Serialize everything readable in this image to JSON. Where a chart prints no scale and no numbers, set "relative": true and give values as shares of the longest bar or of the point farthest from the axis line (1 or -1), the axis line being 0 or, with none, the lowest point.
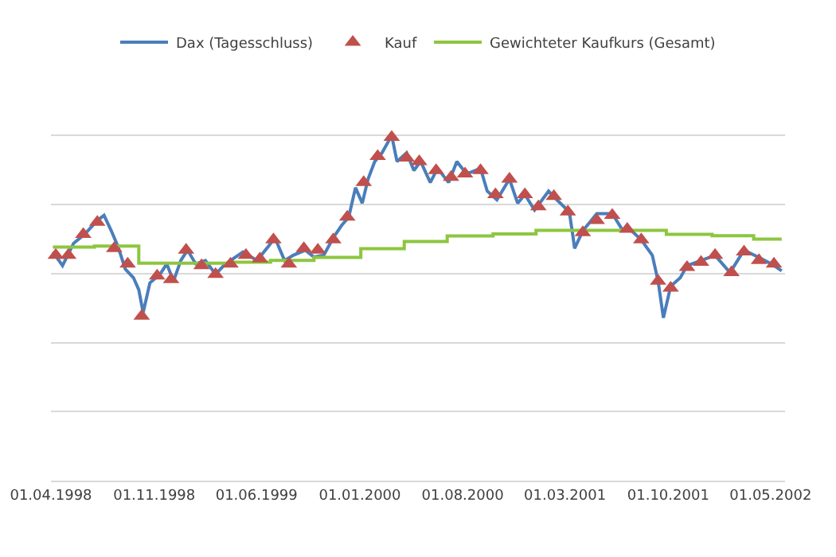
{
  "chart_data": {
    "type": "line",
    "relative": true,
    "grid": "y",
    "legend": "top",
    "xlim": [
      "1998-04-01",
      "2002-05-31"
    ],
    "xticks": [
      {
        "value": "1998-04-01",
        "label": "01.04.1998"
      },
      {
        "value": "1998-11-01",
        "label": "01.11.1998"
      },
      {
        "value": "1999-06-01",
        "label": "01.06.1999"
      },
      {
        "value": "2000-01-01",
        "label": "01.01.2000"
      },
      {
        "value": "2000-08-01",
        "label": "01.08.2000"
      },
      {
        "value": "2001-03-01",
        "label": "01.03.2001"
      },
      {
        "value": "2001-10-01",
        "label": "01.10.2001"
      },
      {
        "value": "2002-05-01",
        "label": "01.05.2002"
      }
    ],
    "series": [
      {
        "name": "Dax (Tagesschluss)",
        "color": "#4a7ebb",
        "x": [
          "1998-04-05",
          "1998-04-25",
          "1998-05-18",
          "1998-06-10",
          "1998-07-06",
          "1998-07-20",
          "1998-08-04",
          "1998-08-18",
          "1998-09-02",
          "1998-09-19",
          "1998-09-30",
          "1998-10-09",
          "1998-10-23",
          "1998-11-13",
          "1998-11-27",
          "1998-12-11",
          "1998-12-26",
          "1999-01-09",
          "1999-01-26",
          "1999-02-15",
          "1999-03-08",
          "1999-03-25",
          "1999-04-08",
          "1999-05-04",
          "1999-06-02",
          "1999-06-25",
          "1999-07-09",
          "1999-07-29",
          "1999-08-16",
          "1999-09-10",
          "1999-09-28",
          "1999-10-18",
          "1999-11-07",
          "1999-11-24",
          "1999-12-09",
          "1999-12-23",
          "2000-01-06",
          "2000-01-18",
          "2000-02-01",
          "2000-02-16",
          "2000-03-07",
          "2000-03-18",
          "2000-04-07",
          "2000-04-22",
          "2000-05-06",
          "2000-05-26",
          "2000-06-10",
          "2000-07-03",
          "2000-07-20",
          "2000-08-09",
          "2000-09-07",
          "2000-09-21",
          "2000-10-11",
          "2000-11-06",
          "2000-11-23",
          "2000-12-08",
          "2000-12-28",
          "2001-01-26",
          "2001-02-12",
          "2001-03-10",
          "2001-03-18",
          "2001-03-21",
          "2001-04-07",
          "2001-05-06",
          "2001-06-07",
          "2001-06-27",
          "2001-07-17",
          "2001-08-06",
          "2001-08-29",
          "2001-09-10",
          "2001-09-21",
          "2001-10-06",
          "2001-10-26",
          "2001-11-09",
          "2001-12-08",
          "2002-01-06",
          "2002-02-06",
          "2002-03-07",
          "2002-04-05",
          "2002-05-03",
          "2002-05-24"
        ],
        "values": [
          0.663,
          0.623,
          0.688,
          0.714,
          0.754,
          0.769,
          0.724,
          0.678,
          0.613,
          0.588,
          0.553,
          0.487,
          0.573,
          0.598,
          0.628,
          0.578,
          0.638,
          0.668,
          0.628,
          0.638,
          0.598,
          0.623,
          0.638,
          0.663,
          0.638,
          0.678,
          0.704,
          0.638,
          0.653,
          0.668,
          0.648,
          0.653,
          0.704,
          0.739,
          0.764,
          0.849,
          0.804,
          0.874,
          0.925,
          0.95,
          1.0,
          0.925,
          0.95,
          0.899,
          0.925,
          0.864,
          0.905,
          0.864,
          0.925,
          0.889,
          0.905,
          0.839,
          0.814,
          0.874,
          0.804,
          0.829,
          0.784,
          0.839,
          0.814,
          0.779,
          0.704,
          0.673,
          0.724,
          0.774,
          0.774,
          0.729,
          0.724,
          0.698,
          0.653,
          0.578,
          0.472,
          0.563,
          0.588,
          0.623,
          0.638,
          0.653,
          0.603,
          0.668,
          0.648,
          0.628,
          0.608
        ]
      },
      {
        "name": "Kauf",
        "type": "scatter",
        "marker": "triangle",
        "color": "#c0504d",
        "x": [
          "1998-04-11",
          "1998-05-07",
          "1998-06-07",
          "1998-07-06",
          "1998-08-10",
          "1998-09-07",
          "1998-10-06",
          "1998-11-07",
          "1998-12-06",
          "1999-01-06",
          "1999-02-07",
          "1999-03-08",
          "1999-04-08",
          "1999-05-10",
          "1999-06-08",
          "1999-07-06",
          "1999-08-07",
          "1999-09-07",
          "1999-10-06",
          "1999-11-07",
          "1999-12-06",
          "2000-01-09",
          "2000-02-07",
          "2000-03-07",
          "2000-04-07",
          "2000-05-03",
          "2000-06-07",
          "2000-07-08",
          "2000-08-06",
          "2000-09-07",
          "2000-10-08",
          "2000-11-06",
          "2000-12-08",
          "2001-01-05",
          "2001-02-06",
          "2001-03-07",
          "2001-04-07",
          "2001-05-06",
          "2001-06-07",
          "2001-07-08",
          "2001-08-06",
          "2001-09-10",
          "2001-10-06",
          "2001-11-09",
          "2001-12-08",
          "2002-01-06",
          "2002-02-09",
          "2002-03-07",
          "2002-04-07",
          "2002-05-08"
        ],
        "values": [
          0.653,
          0.653,
          0.714,
          0.749,
          0.673,
          0.628,
          0.477,
          0.593,
          0.583,
          0.668,
          0.623,
          0.598,
          0.628,
          0.653,
          0.643,
          0.698,
          0.628,
          0.673,
          0.668,
          0.698,
          0.764,
          0.864,
          0.94,
          0.995,
          0.935,
          0.925,
          0.899,
          0.879,
          0.889,
          0.899,
          0.829,
          0.874,
          0.829,
          0.794,
          0.824,
          0.779,
          0.719,
          0.754,
          0.769,
          0.729,
          0.698,
          0.578,
          0.558,
          0.618,
          0.633,
          0.653,
          0.603,
          0.663,
          0.638,
          0.628
        ]
      },
      {
        "name": "Gewichteter Kaufkurs (Gesamt)",
        "type": "step",
        "color": "#8dc63f",
        "x": [
          "1998-04-05",
          "1998-06-30",
          "1998-09-30",
          "1999-04-05",
          "1999-06-30",
          "1999-09-28",
          "2000-01-03",
          "2000-04-02",
          "2000-06-30",
          "2000-10-03",
          "2000-12-31",
          "2001-09-27",
          "2001-12-31",
          "2002-03-27",
          "2002-05-24"
        ],
        "values": [
          0.677,
          0.68,
          0.63,
          0.633,
          0.638,
          0.647,
          0.672,
          0.693,
          0.709,
          0.715,
          0.725,
          0.714,
          0.71,
          0.7,
          0.7
        ]
      }
    ]
  }
}
